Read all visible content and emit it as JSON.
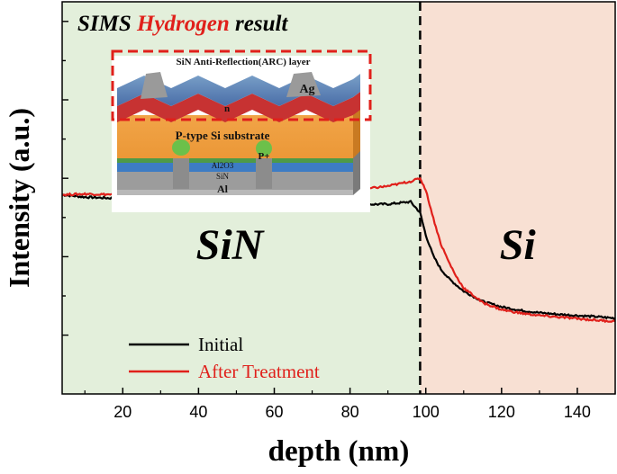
{
  "chart_data": {
    "type": "line",
    "title": "SIMS Hydrogen result",
    "title_parts": [
      {
        "text": "SIMS ",
        "color": "#000000"
      },
      {
        "text": "Hydrogen",
        "color": "#e0201b"
      },
      {
        "text": " result",
        "color": "#000000"
      }
    ],
    "xlabel": "depth (nm)",
    "ylabel": "Intensity (a.u.)",
    "xlim": [
      4,
      150
    ],
    "ylim": [
      0,
      10
    ],
    "xticks": [
      20,
      40,
      60,
      80,
      100,
      120,
      140
    ],
    "y_tick_labels_shown": false,
    "grid": false,
    "legend_position": "bottom-left",
    "interface_depth": 98.5,
    "regions": [
      {
        "label": "SiN",
        "x_range": [
          4,
          98.5
        ],
        "color": "#e3efdb"
      },
      {
        "label": "Si",
        "x_range": [
          98.5,
          150
        ],
        "color": "#f8e0d3"
      }
    ],
    "series": [
      {
        "name": "Initial",
        "color": "#000000",
        "x": [
          4,
          10,
          20,
          30,
          40,
          50,
          60,
          70,
          80,
          90,
          96,
          98.5,
          100,
          102,
          104,
          106,
          108,
          110,
          115,
          120,
          125,
          130,
          135,
          140,
          145,
          150
        ],
        "y": [
          5.08,
          5.02,
          4.98,
          4.92,
          4.88,
          4.86,
          4.87,
          4.85,
          4.83,
          4.84,
          4.9,
          4.62,
          4.05,
          3.52,
          3.18,
          2.95,
          2.78,
          2.62,
          2.36,
          2.22,
          2.13,
          2.07,
          2.03,
          2.0,
          1.97,
          1.93
        ]
      },
      {
        "name": "After Treatment",
        "color": "#e0201b",
        "x": [
          4,
          10,
          20,
          30,
          40,
          50,
          60,
          70,
          80,
          90,
          96,
          98.5,
          100,
          102,
          104,
          106,
          108,
          110,
          115,
          120,
          125,
          130,
          135,
          140,
          145,
          150
        ],
        "y": [
          5.08,
          5.1,
          5.08,
          5.05,
          5.02,
          5.04,
          5.02,
          5.08,
          5.18,
          5.3,
          5.42,
          5.5,
          5.2,
          4.48,
          3.82,
          3.38,
          3.0,
          2.7,
          2.33,
          2.15,
          2.06,
          2.0,
          1.96,
          1.92,
          1.88,
          1.85
        ]
      }
    ],
    "inset": {
      "title": "SiN Anti-Reflection(ARC) layer",
      "labels": [
        "Ag",
        "n",
        "P-type Si substrate",
        "P+",
        "Al2O3",
        "SiN",
        "Al"
      ],
      "highlight_box_color": "#e0201b"
    }
  }
}
